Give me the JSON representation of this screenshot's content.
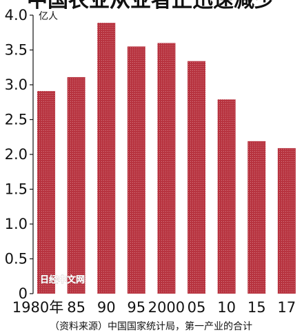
{
  "chart_data": {
    "type": "bar",
    "title": "中国农业从业者正迅速减少",
    "unit_label": "亿人",
    "categories": [
      "1980年",
      "85",
      "90",
      "95",
      "2000",
      "05",
      "10",
      "15",
      "17"
    ],
    "values": [
      2.91,
      3.11,
      3.89,
      3.55,
      3.6,
      3.34,
      2.79,
      2.19,
      2.09
    ],
    "ylim": [
      0,
      4.0
    ],
    "y_ticks": [
      "0",
      "0.5",
      "1.0",
      "1.5",
      "2.0",
      "2.5",
      "3.0",
      "3.5",
      "4.0"
    ],
    "grid": false,
    "bar_color": "#b7333f",
    "source": "（资料来源）中国国家统计局，第一产业的合计",
    "watermark": "日经中文网"
  }
}
